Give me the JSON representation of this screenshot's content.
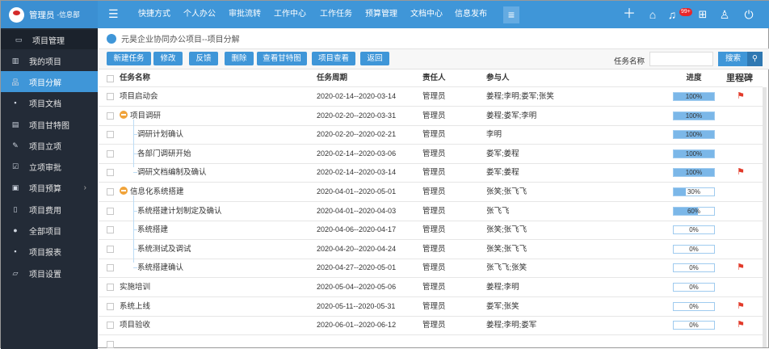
{
  "header": {
    "user": "管理员",
    "dept": "-信息部",
    "nav": [
      "快捷方式",
      "个人办公",
      "审批流转",
      "工作中心",
      "工作任务",
      "预算管理",
      "文档中心",
      "信息发布"
    ],
    "badge": "99+",
    "icons": [
      "menu-icon",
      "more-icon",
      "plus-icon",
      "home-icon",
      "bell-icon",
      "apps-icon",
      "shirt-icon",
      "power-icon"
    ]
  },
  "sidebar": {
    "items": [
      {
        "label": "项目管理",
        "icon": "window-icon"
      },
      {
        "label": "我的项目",
        "icon": "chart-icon"
      },
      {
        "label": "项目分解",
        "icon": "org-icon",
        "active": true
      },
      {
        "label": "项目文档",
        "icon": "doc-icon"
      },
      {
        "label": "项目甘特图",
        "icon": "gantt-icon"
      },
      {
        "label": "项目立项",
        "icon": "pencil-icon"
      },
      {
        "label": "立项审批",
        "icon": "check-icon"
      },
      {
        "label": "项目预算",
        "icon": "budget-icon"
      },
      {
        "label": "项目费用",
        "icon": "fee-icon"
      },
      {
        "label": "全部项目",
        "icon": "circle-icon"
      },
      {
        "label": "项目报表",
        "icon": "report-icon"
      },
      {
        "label": "项目设置",
        "icon": "folder-gear-icon"
      }
    ]
  },
  "breadcrumb": "元昊企业协同办公项目--项目分解",
  "toolbar": {
    "buttons": [
      "新建任务",
      "修改",
      "反馈",
      "删除",
      "查看甘特图",
      "项目查看",
      "返回"
    ],
    "search_label": "任务名称",
    "search_value": "",
    "search_button": "搜索"
  },
  "table": {
    "columns": [
      "任务名称",
      "任务周期",
      "责任人",
      "参与人",
      "进度",
      "里程碑"
    ],
    "rows": [
      {
        "name": "项目启动会",
        "period": "2020-02-14--2020-03-14",
        "owner": "管理员",
        "participants": "姜程;李明;娄军;张笑",
        "progress": 100,
        "milestone": true,
        "level": 0
      },
      {
        "name": "项目调研",
        "period": "2020-02-20--2020-03-31",
        "owner": "管理员",
        "participants": "姜程;娄军;李明",
        "progress": 100,
        "milestone": false,
        "level": 0,
        "group": true
      },
      {
        "name": "调研计划确认",
        "period": "2020-02-20--2020-02-21",
        "owner": "管理员",
        "participants": "李明",
        "progress": 100,
        "milestone": false,
        "level": 1
      },
      {
        "name": "各部门调研开始",
        "period": "2020-02-14--2020-03-06",
        "owner": "管理员",
        "participants": "娄军;姜程",
        "progress": 100,
        "milestone": false,
        "level": 1
      },
      {
        "name": "调研文档编制及确认",
        "period": "2020-02-14--2020-03-14",
        "owner": "管理员",
        "participants": "娄军;姜程",
        "progress": 100,
        "milestone": true,
        "level": 1
      },
      {
        "name": "信息化系统搭建",
        "period": "2020-04-01--2020-05-01",
        "owner": "管理员",
        "participants": "张笑;张飞飞",
        "progress": 30,
        "milestone": false,
        "level": 0,
        "group": true
      },
      {
        "name": "系统搭建计划制定及确认",
        "period": "2020-04-01--2020-04-03",
        "owner": "管理员",
        "participants": "张飞飞",
        "progress": 60,
        "milestone": false,
        "level": 1
      },
      {
        "name": "系统搭建",
        "period": "2020-04-06--2020-04-17",
        "owner": "管理员",
        "participants": "张笑;张飞飞",
        "progress": 0,
        "milestone": false,
        "level": 1
      },
      {
        "name": "系统测试及调试",
        "period": "2020-04-20--2020-04-24",
        "owner": "管理员",
        "participants": "张笑;张飞飞",
        "progress": 0,
        "milestone": false,
        "level": 1
      },
      {
        "name": "系统搭建确认",
        "period": "2020-04-27--2020-05-01",
        "owner": "管理员",
        "participants": "张飞飞;张笑",
        "progress": 0,
        "milestone": true,
        "level": 1
      },
      {
        "name": "实施培训",
        "period": "2020-05-04--2020-05-06",
        "owner": "管理员",
        "participants": "姜程;李明",
        "progress": 0,
        "milestone": false,
        "level": 0
      },
      {
        "name": "系统上线",
        "period": "2020-05-11--2020-05-31",
        "owner": "管理员",
        "participants": "娄军;张笑",
        "progress": 0,
        "milestone": true,
        "level": 0
      },
      {
        "name": "项目验收",
        "period": "2020-06-01--2020-06-12",
        "owner": "管理员",
        "participants": "姜程;李明;娄军",
        "progress": 0,
        "milestone": true,
        "level": 0
      }
    ]
  },
  "colors": {
    "primary": "#3f96d8",
    "sidebar": "#232b37",
    "progress": "#7bb7e8",
    "milestone": "#e23a2a",
    "group": "#f0a33a"
  }
}
